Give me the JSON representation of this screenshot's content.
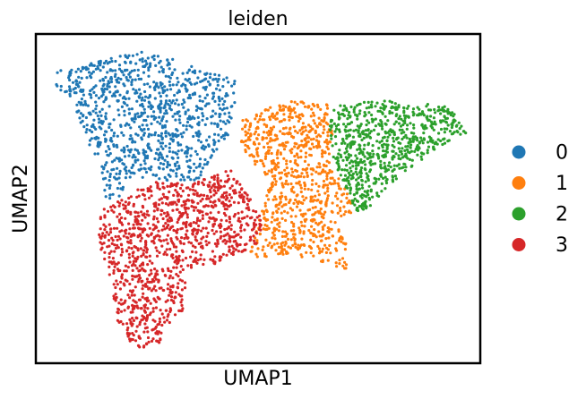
{
  "chart_data": {
    "type": "scatter",
    "title": "leiden",
    "xlabel": "UMAP1",
    "ylabel": "UMAP2",
    "grid": false,
    "xticks": "none",
    "yticks": "none",
    "legend_placement": "right",
    "xlim": [
      0,
      100
    ],
    "ylim": [
      0,
      100
    ],
    "series": [
      {
        "name": "0",
        "color": "#1f77b4",
        "region": [
          [
            5,
            89
          ],
          [
            12,
            91
          ],
          [
            24,
            95
          ],
          [
            33,
            92
          ],
          [
            45,
            86
          ],
          [
            45,
            74
          ],
          [
            42,
            66
          ],
          [
            36,
            55
          ],
          [
            24,
            56
          ],
          [
            16,
            48
          ],
          [
            14,
            58
          ],
          [
            11,
            70
          ],
          [
            8,
            80
          ],
          [
            4,
            84
          ]
        ],
        "count": 950
      },
      {
        "name": "1",
        "color": "#ff7f0e",
        "region": [
          [
            46,
            74
          ],
          [
            56,
            80
          ],
          [
            66,
            79
          ],
          [
            67,
            73
          ],
          [
            66,
            62
          ],
          [
            69,
            55
          ],
          [
            72,
            46
          ],
          [
            67,
            44
          ],
          [
            70,
            36
          ],
          [
            70,
            28
          ],
          [
            66,
            30
          ],
          [
            58,
            33
          ],
          [
            48,
            32
          ],
          [
            51,
            47
          ],
          [
            53,
            56
          ],
          [
            46,
            63
          ]
        ],
        "count": 820
      },
      {
        "name": "2",
        "color": "#2ca02c",
        "region": [
          [
            67,
            78
          ],
          [
            78,
            80
          ],
          [
            93,
            78
          ],
          [
            97,
            70
          ],
          [
            91,
            66
          ],
          [
            85,
            60
          ],
          [
            78,
            52
          ],
          [
            73,
            44
          ],
          [
            69,
            55
          ],
          [
            67,
            62
          ],
          [
            66,
            73
          ]
        ],
        "count": 720
      },
      {
        "name": "3",
        "color": "#d62728",
        "region": [
          [
            14,
            46
          ],
          [
            26,
            55
          ],
          [
            36,
            55
          ],
          [
            44,
            59
          ],
          [
            51,
            44
          ],
          [
            50,
            36
          ],
          [
            40,
            30
          ],
          [
            34,
            28
          ],
          [
            33,
            16
          ],
          [
            28,
            6
          ],
          [
            22,
            4
          ],
          [
            18,
            13
          ],
          [
            17,
            25
          ],
          [
            14,
            37
          ]
        ],
        "count": 1100
      }
    ]
  }
}
